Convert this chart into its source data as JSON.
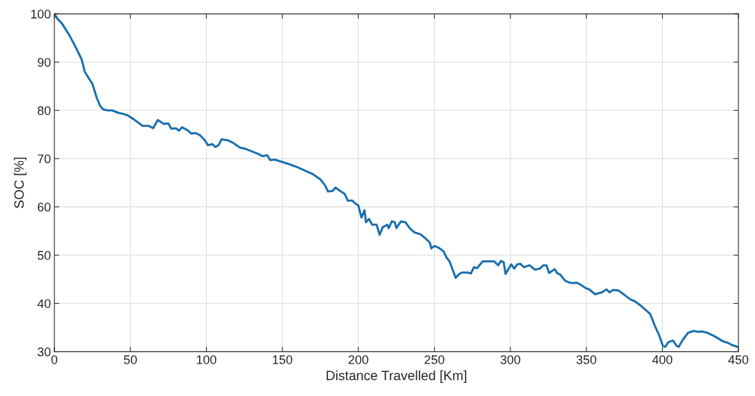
{
  "chart_data": {
    "type": "line",
    "xlabel": "Distance Travelled [Km]",
    "ylabel": "SOC [%]",
    "xlim": [
      0,
      450
    ],
    "xticks": [
      0,
      50,
      100,
      150,
      200,
      250,
      300,
      350,
      400,
      450
    ],
    "ylim": [
      30,
      100
    ],
    "yticks": [
      30,
      40,
      50,
      60,
      70,
      80,
      90,
      100
    ],
    "grid": true,
    "marker": "none",
    "line_style": "solid",
    "series": [
      {
        "color": "#1a6fae",
        "x": [
          0,
          2,
          5,
          10,
          15,
          18,
          20,
          25,
          28,
          30,
          32,
          35,
          38,
          42,
          45,
          48,
          52,
          55,
          58,
          62,
          65,
          68,
          72,
          75,
          77,
          80,
          82,
          84,
          88,
          90,
          93,
          96,
          99,
          101,
          104,
          106,
          108,
          110,
          114,
          118,
          122,
          126,
          130,
          134,
          137,
          140,
          142,
          145,
          150,
          155,
          160,
          165,
          170,
          175,
          178,
          180,
          183,
          185,
          188,
          191,
          193,
          196,
          198,
          200,
          202,
          204,
          205,
          207,
          209,
          212,
          214,
          216,
          219,
          220,
          222,
          224,
          225,
          228,
          231,
          234,
          237,
          241,
          244,
          247,
          248,
          250,
          253,
          256,
          258,
          260,
          262,
          264,
          266,
          268,
          272,
          274,
          276,
          278,
          281.8,
          289.3,
          292,
          293.8,
          295.6,
          296.8,
          300.6,
          302.5,
          304.6,
          306.6,
          308.9,
          312.6,
          316.1,
          319.4,
          321.7,
          323.7,
          325.5,
          327.4,
          329.2,
          330.7,
          333,
          336,
          339,
          341.8,
          343.6,
          346.6,
          349.9,
          351.9,
          355.7,
          360.2,
          363.2,
          365.2,
          367.5,
          370.8,
          375.3,
          379.1,
          382.1,
          385.9,
          392,
          395,
          398,
          400.3,
          401.8,
          404,
          407.1,
          409.3,
          410.8,
          413.1,
          416.9,
          420.6,
          423.7,
          425.9,
          429.7,
          434.2,
          439.5,
          443.3,
          445.5,
          449.3
        ],
        "values": [
          100,
          99,
          98,
          95.5,
          92.5,
          90.5,
          88,
          85.5,
          82.5,
          81,
          80.2,
          80,
          80,
          79.5,
          79.3,
          79,
          78.2,
          77.5,
          76.8,
          76.8,
          76.3,
          78,
          77.2,
          77.3,
          76.2,
          76.3,
          75.8,
          76.5,
          75.8,
          75.2,
          75.3,
          74.8,
          73.8,
          72.8,
          73,
          72.4,
          72.8,
          74,
          73.8,
          73.2,
          72.3,
          72,
          71.5,
          71,
          70.5,
          70.7,
          69.7,
          69.8,
          69.3,
          68.8,
          68.2,
          67.5,
          66.8,
          65.7,
          64.5,
          63.2,
          63.3,
          64,
          63.3,
          62.7,
          61.3,
          61.3,
          60.7,
          60.3,
          57.8,
          59.3,
          56.8,
          57.5,
          56.3,
          56.3,
          54.2,
          55.8,
          56.3,
          55.6,
          57,
          56.8,
          55.6,
          57,
          56.8,
          55.5,
          54.7,
          54.3,
          53.5,
          52.6,
          51.4,
          51.9,
          51.5,
          50.8,
          49.5,
          48.7,
          47,
          45.3,
          46,
          46.4,
          46.4,
          46.2,
          47.5,
          47.3,
          48.7,
          48.7,
          47.9,
          48.8,
          48.5,
          46.1,
          48.1,
          47.2,
          48.1,
          48.2,
          47.5,
          47.9,
          47,
          47.2,
          47.9,
          47.9,
          46.3,
          46.7,
          47.1,
          46.3,
          45.9,
          44.7,
          44.3,
          44.2,
          44.3,
          43.8,
          43.1,
          42.9,
          41.9,
          42.3,
          42.9,
          42.3,
          42.8,
          42.7,
          41.7,
          40.8,
          40.4,
          39.5,
          37.8,
          35.4,
          33.3,
          31.2,
          31,
          32,
          32.3,
          31.2,
          31,
          32.3,
          33.9,
          34.3,
          34.1,
          34.2,
          33.9,
          33.2,
          32.2,
          31.8,
          31.4,
          31
        ]
      }
    ]
  }
}
